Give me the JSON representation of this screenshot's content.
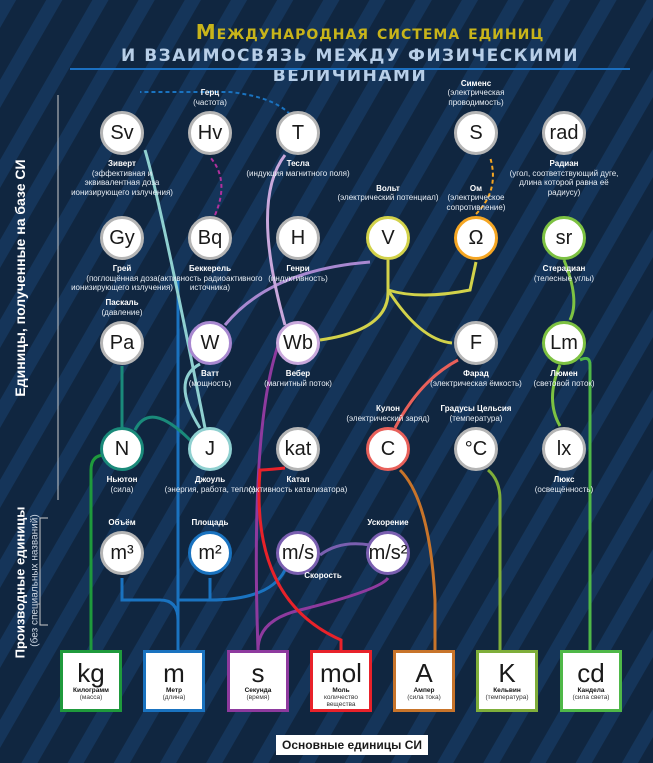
{
  "header": {
    "title": "Международная система единиц",
    "subtitle": "И ВЗАИМОСВЯЗЬ МЕЖДУ ФИЗИЧЕСКИМИ ВЕЛИЧИНАМИ"
  },
  "side_labels": {
    "si_derived": "Единицы, полученные на базе СИ",
    "derived": "Производные единицы",
    "derived_note": "(без специальных названий)"
  },
  "nodes": [
    {
      "sym": "Sv",
      "name": "Зиверт",
      "desc": "(эффективная и эквивалентная доза ионизирующего излучения)",
      "color": "#b5b5b5"
    },
    {
      "sym": "Hv",
      "name": "Герц",
      "desc": "(частота)",
      "color": "#b5b5b5"
    },
    {
      "sym": "T",
      "name": "Тесла",
      "desc": "(индукция магнитного поля)",
      "color": "#b5b5b5"
    },
    {
      "sym": "S",
      "name": "Сименс",
      "desc": "(электрическая проводимость)",
      "color": "#b5b5b5"
    },
    {
      "sym": "rad",
      "name": "Радиан",
      "desc": "(угол, соответствующий дуге, длина которой равна её радиусу)",
      "color": "#b5b5b5"
    },
    {
      "sym": "Gy",
      "name": "Грей",
      "desc": "(поглощённая доза ионизирующего излучения)",
      "color": "#b5b5b5"
    },
    {
      "sym": "Bq",
      "name": "Беккерель",
      "desc": "(активность радиоактивного источника)",
      "color": "#b5b5b5"
    },
    {
      "sym": "H",
      "name": "Генри",
      "desc": "(индуктивность)",
      "color": "#b5b5b5"
    },
    {
      "sym": "V",
      "name": "Вольт",
      "desc": "(электрический потенциал)",
      "color": "#d2d24a"
    },
    {
      "sym": "Ω",
      "name": "Ом",
      "desc": "(электрическое сопротивление)",
      "color": "#f5a623"
    },
    {
      "sym": "sr",
      "name": "Стерадиан",
      "desc": "(телесные углы)",
      "color": "#7dc242"
    },
    {
      "sym": "Pa",
      "name": "Паскаль",
      "desc": "(давление)",
      "color": "#b5b5b5"
    },
    {
      "sym": "W",
      "name": "Ватт",
      "desc": "(мощность)",
      "color": "#a888d0"
    },
    {
      "sym": "Wb",
      "name": "Вебер",
      "desc": "(магнитный поток)",
      "color": "#c9a8dc"
    },
    {
      "sym": "F",
      "name": "Фарад",
      "desc": "(электрическая ёмкость)",
      "color": "#b5b5b5"
    },
    {
      "sym": "Lm",
      "name": "Люмен",
      "desc": "(световой поток)",
      "color": "#7dc242"
    },
    {
      "sym": "N",
      "name": "Ньютон",
      "desc": "(сила)",
      "color": "#1a8a7a"
    },
    {
      "sym": "J",
      "name": "Джоуль",
      "desc": "(энергия, работа, тепло)",
      "color": "#8fd0d0"
    },
    {
      "sym": "kat",
      "name": "Катал",
      "desc": "(активность катализатора)",
      "color": "#b5b5b5"
    },
    {
      "sym": "C",
      "name": "Кулон",
      "desc": "(электрический заряд)",
      "color": "#e8605a"
    },
    {
      "sym": "°C",
      "name": "Градусы Цельсия",
      "desc": "(температура)",
      "color": "#b5b5b5"
    },
    {
      "sym": "lx",
      "name": "Люкс",
      "desc": "(освещённость)",
      "color": "#b5b5b5"
    },
    {
      "sym": "m³",
      "name": "Объём",
      "desc": "",
      "color": "#b5b5b5"
    },
    {
      "sym": "m²",
      "name": "Площадь",
      "desc": "",
      "color": "#1a73c0"
    },
    {
      "sym": "m/s",
      "name": "Скорость",
      "desc": "",
      "color": "#7a5fb0"
    },
    {
      "sym": "m/s²",
      "name": "Ускорение",
      "desc": "",
      "color": "#7a5fb0"
    }
  ],
  "base_units": [
    {
      "sym": "kg",
      "name": "Килограмм",
      "desc": "(масса)",
      "color": "#1f9a3c"
    },
    {
      "sym": "m",
      "name": "Метр",
      "desc": "(длина)",
      "color": "#1a73c0"
    },
    {
      "sym": "s",
      "name": "Секунда",
      "desc": "(время)",
      "color": "#8e3a9e"
    },
    {
      "sym": "mol",
      "name": "Моль",
      "desc": "количество вещества",
      "color": "#e8222a"
    },
    {
      "sym": "A",
      "name": "Ампер",
      "desc": "(сила тока)",
      "color": "#c8742a"
    },
    {
      "sym": "K",
      "name": "Кельвин",
      "desc": "(температура)",
      "color": "#7fae3a"
    },
    {
      "sym": "cd",
      "name": "Кандела",
      "desc": "(сила света)",
      "color": "#4fb848"
    }
  ],
  "footer": "Основные единицы СИ"
}
